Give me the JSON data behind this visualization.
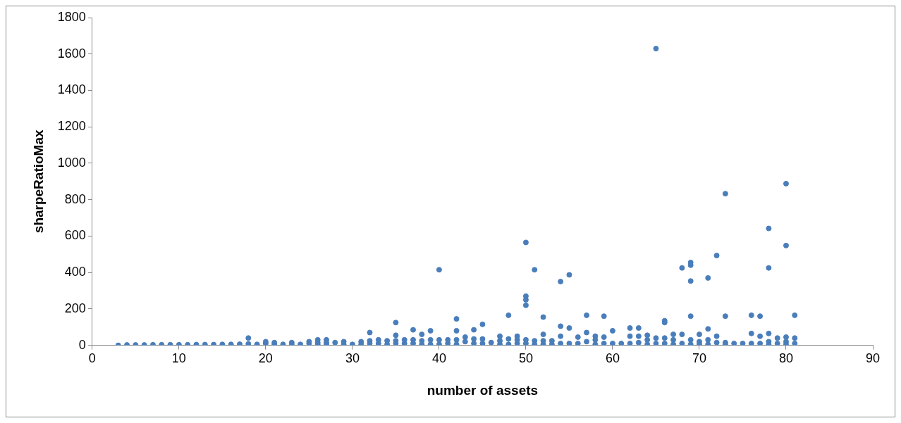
{
  "chart_data": {
    "type": "scatter",
    "xlabel": "number of assets",
    "ylabel": "sharpeRatioMax",
    "xlim": [
      0,
      90
    ],
    "xticks": [
      0,
      10,
      20,
      30,
      40,
      50,
      60,
      70,
      80,
      90
    ],
    "ylim": [
      0,
      1800
    ],
    "yticks": [
      0,
      200,
      400,
      600,
      800,
      1000,
      1200,
      1400,
      1600,
      1800
    ],
    "grid": false,
    "legend": false,
    "marker": "circle",
    "series": [
      {
        "color": "#4a7ebb",
        "x": [
          3,
          4,
          5,
          6,
          7,
          8,
          9,
          10,
          11,
          12,
          13,
          14,
          15,
          16,
          17,
          18,
          18,
          19,
          20,
          20,
          21,
          21,
          22,
          23,
          23,
          24,
          25,
          25,
          26,
          26,
          26,
          27,
          27,
          27,
          28,
          29,
          29,
          30,
          31,
          31,
          32,
          32,
          32,
          33,
          33,
          34,
          34,
          35,
          35,
          35,
          35,
          36,
          36,
          37,
          37,
          37,
          38,
          38,
          38,
          39,
          39,
          39,
          40,
          40,
          40,
          41,
          41,
          42,
          42,
          42,
          42,
          43,
          43,
          44,
          44,
          44,
          45,
          45,
          45,
          46,
          47,
          47,
          47,
          48,
          48,
          48,
          49,
          49,
          49,
          50,
          50,
          50,
          50,
          50,
          50,
          51,
          51,
          51,
          52,
          52,
          52,
          52,
          53,
          53,
          54,
          54,
          54,
          54,
          55,
          55,
          55,
          56,
          56,
          57,
          57,
          57,
          58,
          58,
          58,
          59,
          59,
          59,
          60,
          60,
          61,
          62,
          62,
          62,
          63,
          63,
          63,
          64,
          64,
          64,
          65,
          65,
          65,
          66,
          66,
          66,
          66,
          67,
          67,
          67,
          68,
          68,
          68,
          69,
          69,
          69,
          69,
          69,
          69,
          70,
          70,
          70,
          71,
          71,
          71,
          71,
          72,
          72,
          72,
          73,
          73,
          73,
          73,
          74,
          75,
          76,
          76,
          76,
          77,
          77,
          77,
          78,
          78,
          78,
          78,
          78,
          79,
          79,
          80,
          80,
          80,
          80,
          80,
          81,
          81,
          81
        ],
        "values": [
          0,
          2,
          2,
          2,
          3,
          3,
          3,
          3,
          3,
          4,
          4,
          4,
          5,
          5,
          6,
          40,
          8,
          5,
          10,
          20,
          5,
          15,
          5,
          15,
          5,
          5,
          10,
          20,
          30,
          15,
          5,
          30,
          15,
          5,
          15,
          20,
          5,
          5,
          20,
          5,
          70,
          25,
          10,
          30,
          10,
          25,
          5,
          125,
          55,
          25,
          10,
          30,
          10,
          85,
          30,
          10,
          60,
          25,
          5,
          80,
          30,
          5,
          415,
          30,
          5,
          30,
          10,
          145,
          80,
          30,
          5,
          45,
          20,
          85,
          35,
          10,
          115,
          35,
          10,
          15,
          50,
          25,
          5,
          165,
          35,
          5,
          50,
          30,
          10,
          565,
          270,
          250,
          220,
          30,
          10,
          415,
          25,
          5,
          155,
          60,
          25,
          5,
          25,
          5,
          350,
          105,
          50,
          10,
          387,
          95,
          10,
          45,
          10,
          165,
          70,
          20,
          50,
          30,
          5,
          160,
          45,
          10,
          80,
          10,
          10,
          95,
          50,
          10,
          95,
          50,
          15,
          55,
          30,
          5,
          1630,
          40,
          10,
          135,
          125,
          40,
          10,
          60,
          30,
          5,
          425,
          60,
          10,
          455,
          440,
          353,
          160,
          30,
          5,
          60,
          20,
          5,
          370,
          90,
          30,
          5,
          493,
          50,
          15,
          833,
          160,
          15,
          5,
          10,
          10,
          165,
          65,
          10,
          160,
          50,
          10,
          642,
          425,
          65,
          20,
          5,
          40,
          10,
          888,
          548,
          45,
          20,
          5,
          165,
          40,
          10
        ]
      }
    ]
  }
}
